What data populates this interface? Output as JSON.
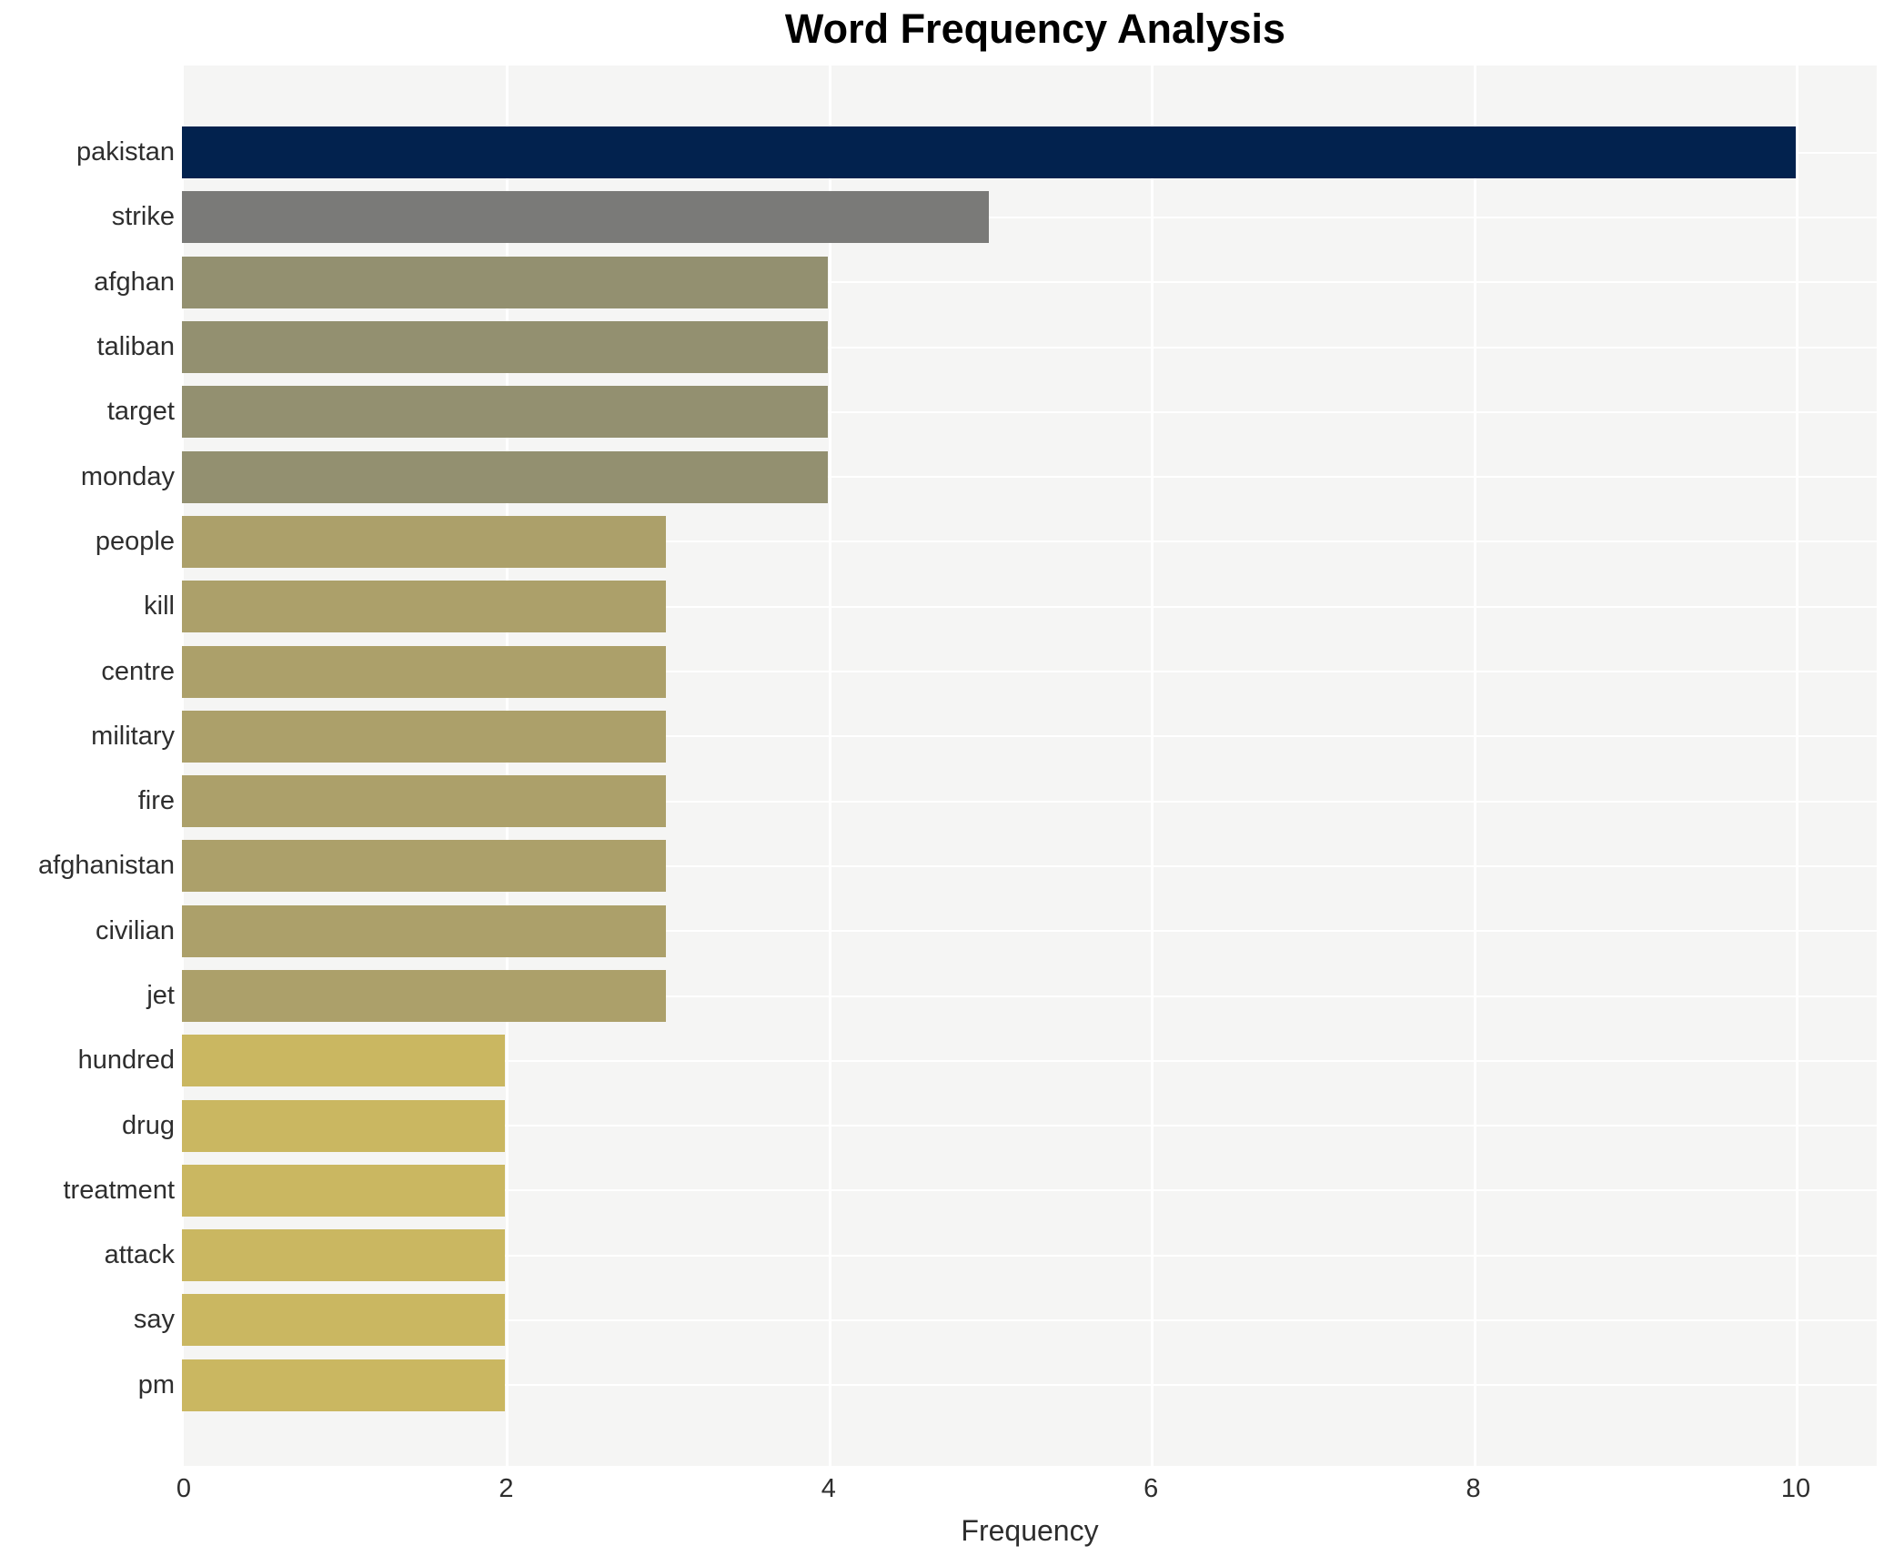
{
  "title": "Word Frequency Analysis",
  "chart_data": {
    "type": "bar",
    "orientation": "horizontal",
    "title": "Word Frequency Analysis",
    "xlabel": "Frequency",
    "ylabel": "",
    "xlim": [
      0,
      10.5
    ],
    "x_ticks": [
      0,
      2,
      4,
      6,
      8,
      10
    ],
    "grid": true,
    "legend": "none",
    "categories": [
      "pakistan",
      "strike",
      "afghan",
      "taliban",
      "target",
      "monday",
      "people",
      "kill",
      "centre",
      "military",
      "fire",
      "afghanistan",
      "civilian",
      "jet",
      "hundred",
      "drug",
      "treatment",
      "attack",
      "say",
      "pm"
    ],
    "values": [
      10,
      5,
      4,
      4,
      4,
      4,
      3,
      3,
      3,
      3,
      3,
      3,
      3,
      3,
      2,
      2,
      2,
      2,
      2,
      2
    ],
    "bar_colors": [
      "#02224e",
      "#7a7a78",
      "#939070",
      "#939070",
      "#939070",
      "#939070",
      "#aca06a",
      "#aca06a",
      "#aca06a",
      "#aca06a",
      "#aca06a",
      "#aca06a",
      "#aca06a",
      "#aca06a",
      "#cab761",
      "#cab761",
      "#cab761",
      "#cab761",
      "#cab761",
      "#cab761"
    ]
  },
  "style_colors": {
    "plot_background": "#f5f5f4",
    "gridline": "#ffffff",
    "title_text": "#000000",
    "axis_text": "#2e2e2e"
  }
}
